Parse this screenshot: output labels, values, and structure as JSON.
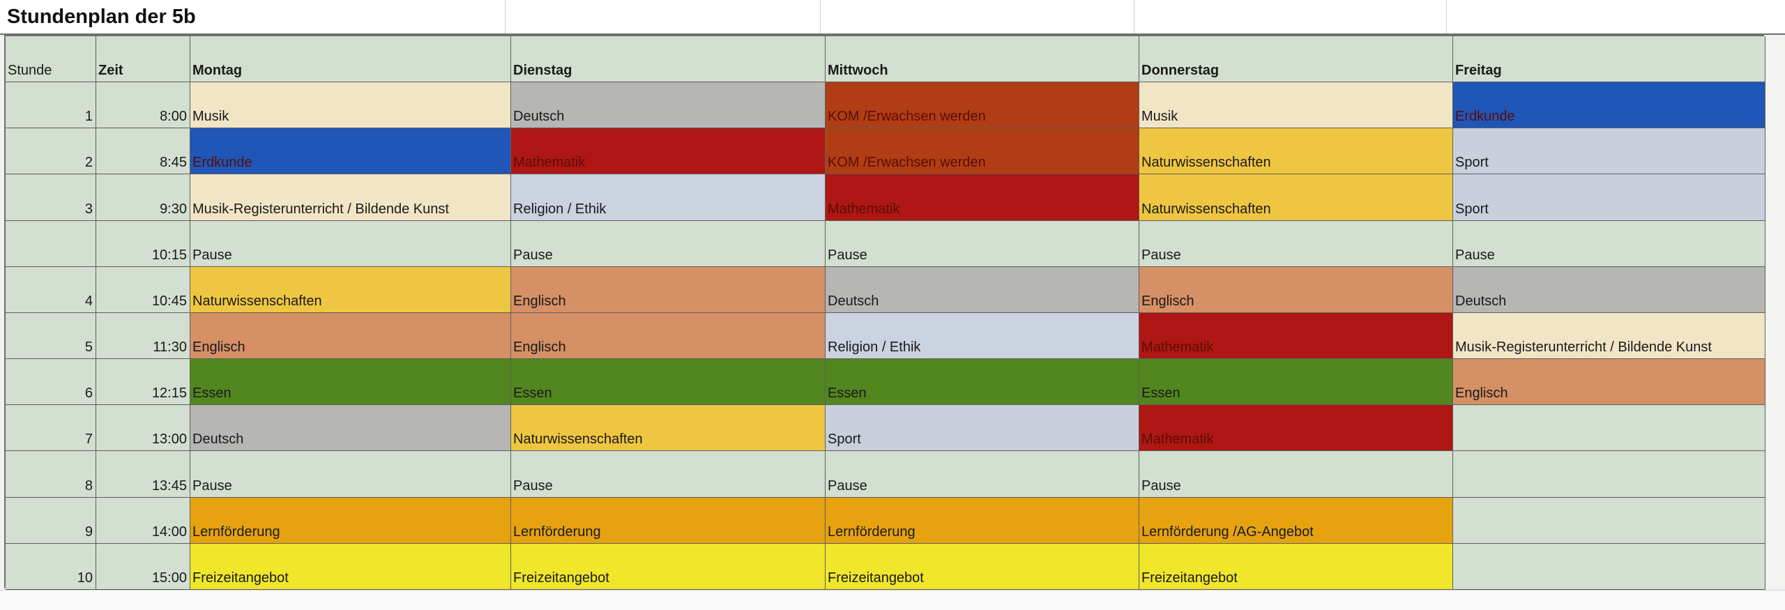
{
  "sheet": {
    "title": "Stundenplan der 5b"
  },
  "colors": {
    "default": "#d3dfd0",
    "Musik": "#f2e5c6",
    "Deutsch": "#b6b6b4",
    "KOM /Erwachsen werden": "#b13d14",
    "Erdkunde": "#1f56b8",
    "Mathematik": "#ae1713",
    "Naturwissenschaften": "#efc641",
    "Sport": "#c9d0dc",
    "Musik-Registerunterricht / Bildende Kunst": "#f2e5c6",
    "Religion / Ethik": "#cbd2e0",
    "Pause": "#d3dfd0",
    "Englisch": "#d69065",
    "Essen": "#52861f",
    "Lernförderung": "#e6a30f",
    "Lernförderung /AG-Angebot": "#e6a30f",
    "Freizeitangebot": "#f0e72a"
  },
  "table": {
    "headers": [
      "Stunde",
      "Zeit",
      "Montag",
      "Dienstag",
      "Mittwoch",
      "Donnerstag",
      "Freitag"
    ],
    "rows": [
      {
        "stunde": "1",
        "zeit": "8:00",
        "days": [
          "Musik",
          "Deutsch",
          "KOM /Erwachsen werden",
          "Musik",
          "Erdkunde"
        ]
      },
      {
        "stunde": "2",
        "zeit": "8:45",
        "days": [
          "Erdkunde",
          "Mathematik",
          "KOM /Erwachsen werden",
          "Naturwissenschaften",
          "Sport"
        ]
      },
      {
        "stunde": "3",
        "zeit": "9:30",
        "days": [
          "Musik-Registerunterricht / Bildende Kunst",
          "Religion / Ethik",
          "Mathematik",
          "Naturwissenschaften",
          "Sport"
        ]
      },
      {
        "stunde": "",
        "zeit": "10:15",
        "days": [
          "Pause",
          "Pause",
          "Pause",
          "Pause",
          "Pause"
        ]
      },
      {
        "stunde": "4",
        "zeit": "10:45",
        "days": [
          "Naturwissenschaften",
          "Englisch",
          "Deutsch",
          "Englisch",
          "Deutsch"
        ]
      },
      {
        "stunde": "5",
        "zeit": "11:30",
        "days": [
          "Englisch",
          "Englisch",
          "Religion / Ethik",
          "Mathematik",
          "Musik-Registerunterricht / Bildende Kunst"
        ]
      },
      {
        "stunde": "6",
        "zeit": "12:15",
        "days": [
          "Essen",
          "Essen",
          "Essen",
          "Essen",
          "Englisch"
        ]
      },
      {
        "stunde": "7",
        "zeit": "13:00",
        "days": [
          "Deutsch",
          "Naturwissenschaften",
          "Sport",
          "Mathematik",
          ""
        ]
      },
      {
        "stunde": "8",
        "zeit": "13:45",
        "days": [
          "Pause",
          "Pause",
          "Pause",
          "Pause",
          ""
        ]
      },
      {
        "stunde": "9",
        "zeit": "14:00",
        "days": [
          "Lernförderung",
          "Lernförderung",
          "Lernförderung",
          "Lernförderung /AG-Angebot",
          ""
        ]
      },
      {
        "stunde": "10",
        "zeit": "15:00",
        "days": [
          "Freizeitangebot",
          "Freizeitangebot",
          "Freizeitangebot",
          "Freizeitangebot",
          ""
        ]
      }
    ]
  }
}
